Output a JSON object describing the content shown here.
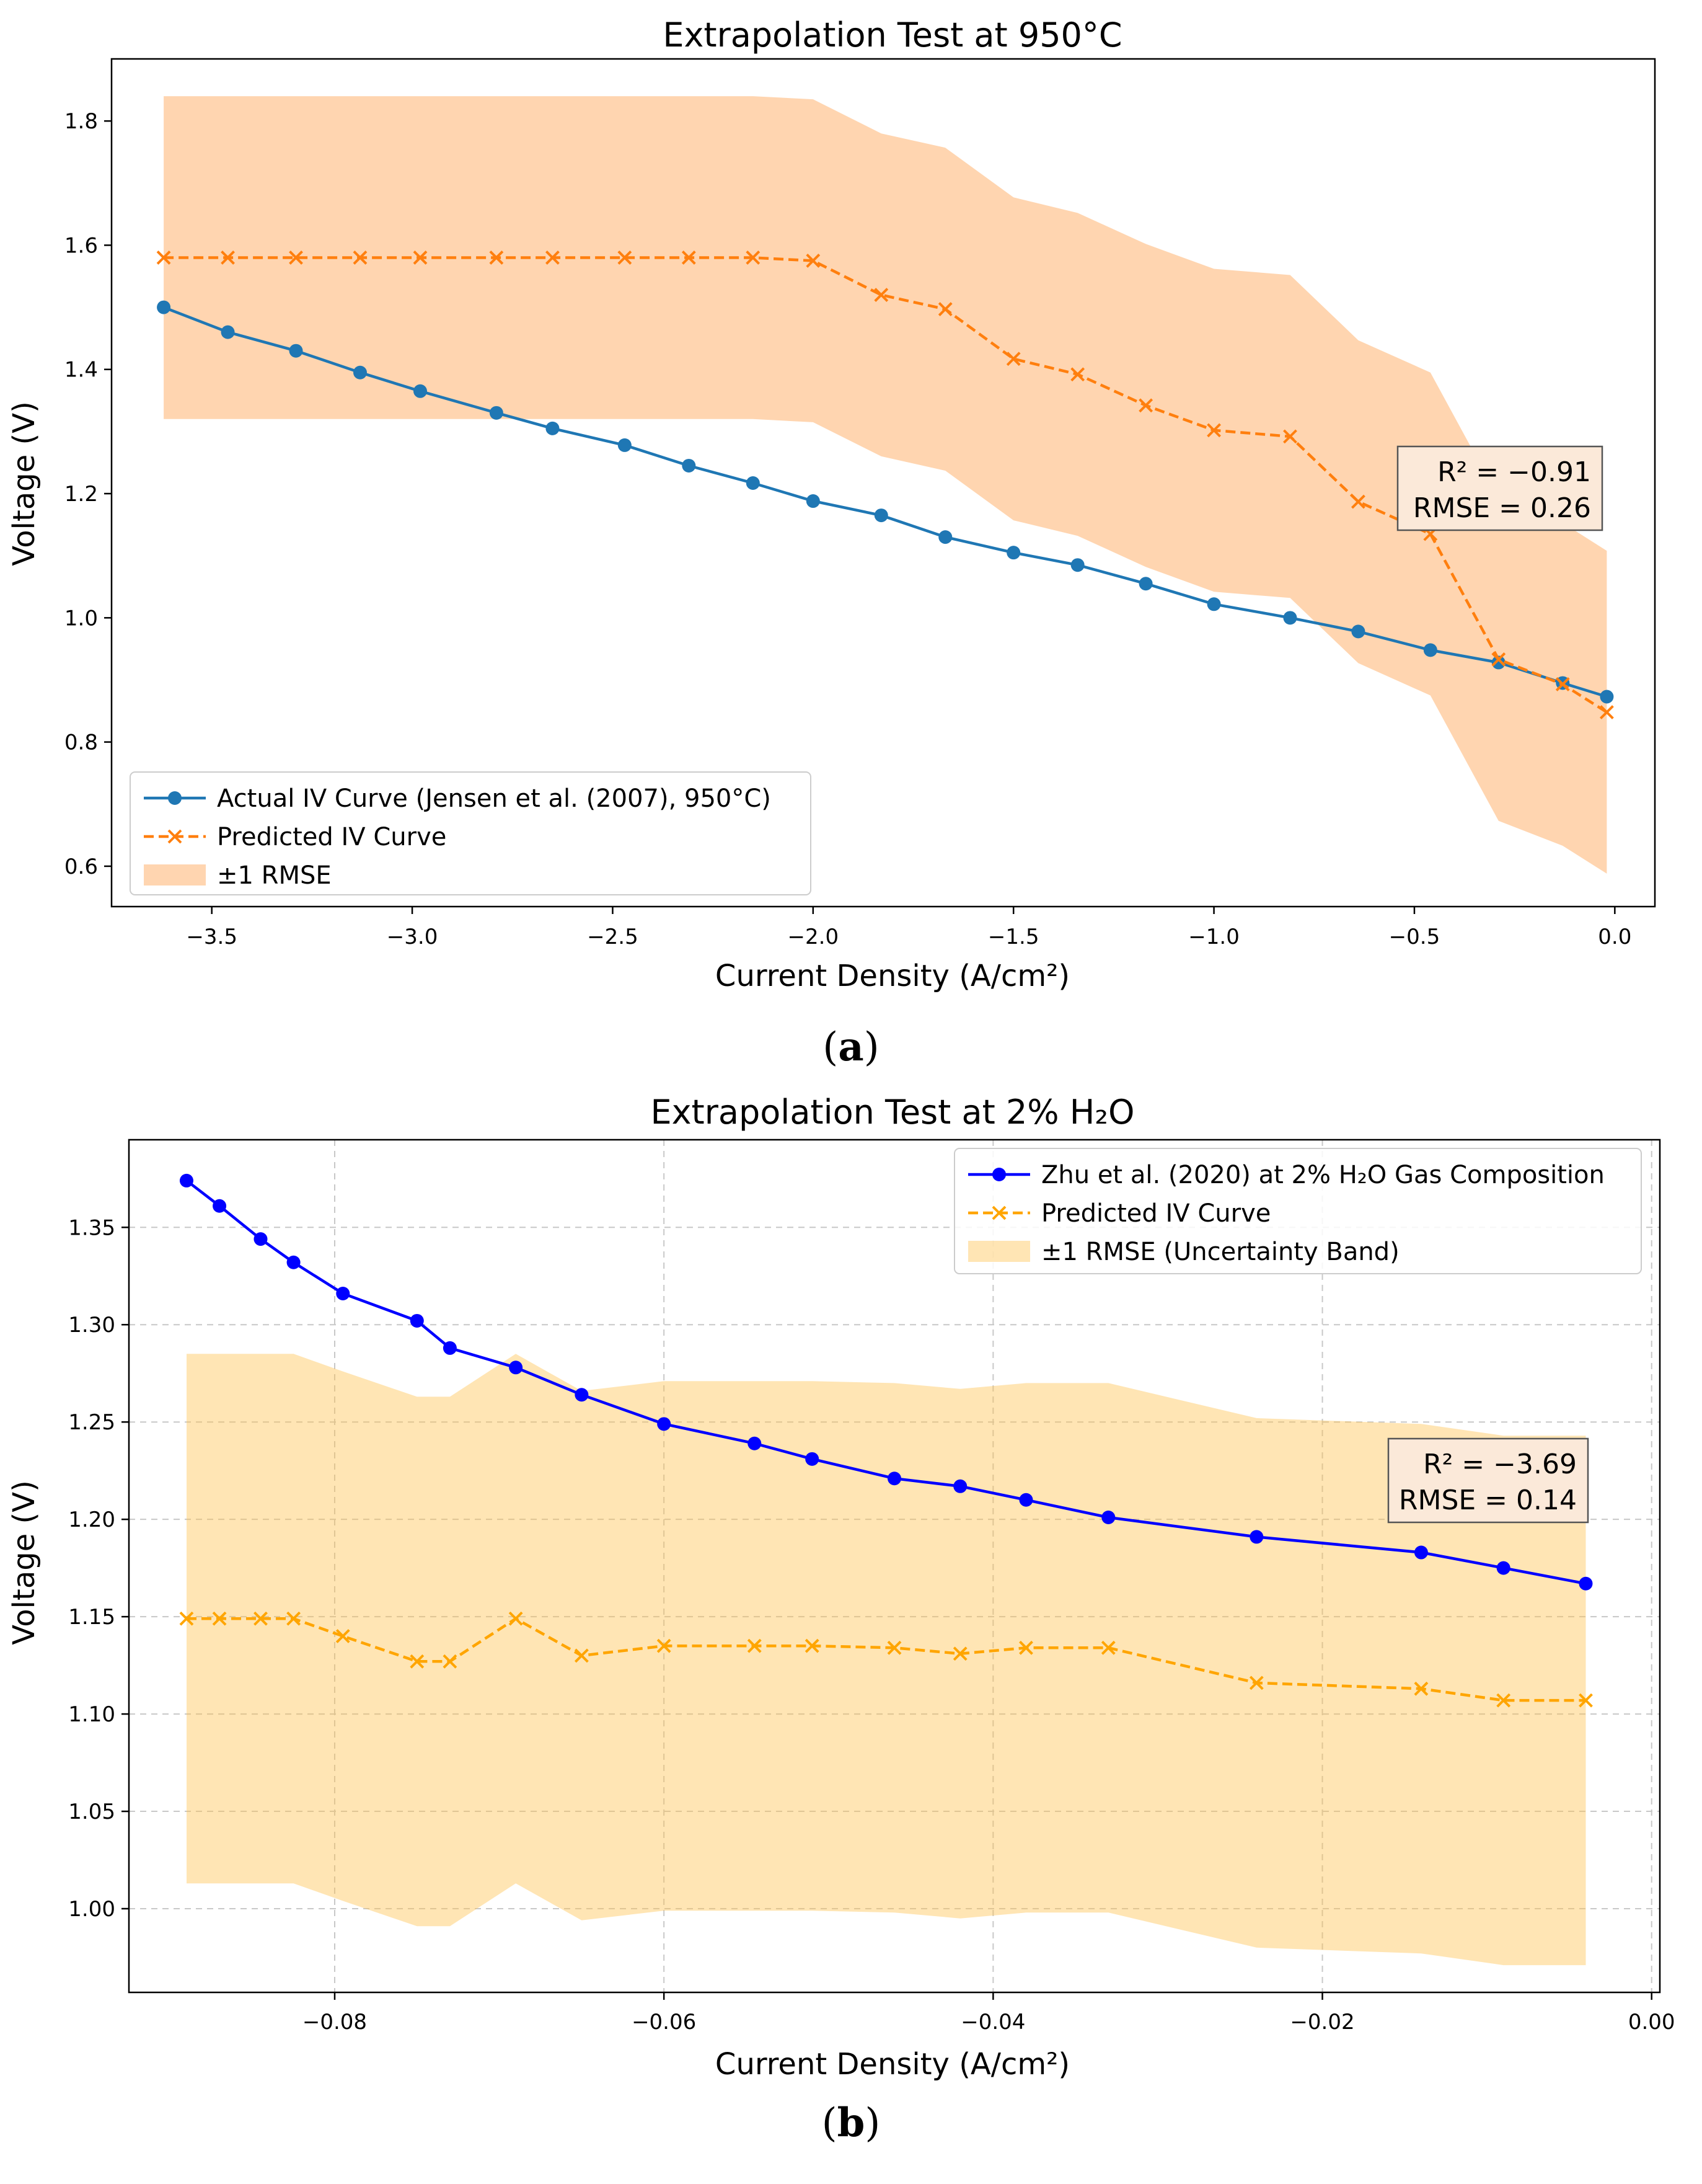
{
  "chart_data": [
    {
      "id": "a",
      "type": "line",
      "title": "Extrapolation Test at 950°C",
      "xlabel": "Current Density (A/cm²)",
      "ylabel": "Voltage (V)",
      "caption_letter": "a",
      "xlim": [
        -3.75,
        0.1
      ],
      "ylim": [
        0.535,
        1.9
      ],
      "xticks": [
        -3.5,
        -3.0,
        -2.5,
        -2.0,
        -1.5,
        -1.0,
        -0.5,
        0.0
      ],
      "xtick_labels": [
        "−3.5",
        "−3.0",
        "−2.5",
        "−2.0",
        "−1.5",
        "−1.0",
        "−0.5",
        "0.0"
      ],
      "yticks": [
        0.6,
        0.8,
        1.0,
        1.2,
        1.4,
        1.6,
        1.8
      ],
      "ytick_labels": [
        "0.6",
        "0.8",
        "1.0",
        "1.2",
        "1.4",
        "1.6",
        "1.8"
      ],
      "grid": false,
      "legend_position": "lower-left",
      "stats": {
        "r2": "R² = −0.91",
        "rmse": "RMSE = 0.26"
      },
      "colors": {
        "actual": "#1f77b4",
        "predicted": "#ff7f0e",
        "band": "#ff7f0e"
      },
      "x": [
        -3.62,
        -3.46,
        -3.29,
        -3.13,
        -2.98,
        -2.79,
        -2.65,
        -2.47,
        -2.31,
        -2.15,
        -2.0,
        -1.83,
        -1.67,
        -1.5,
        -1.34,
        -1.17,
        -1.0,
        -0.81,
        -0.64,
        -0.46,
        -0.29,
        -0.13,
        -0.02
      ],
      "series": [
        {
          "name": "Actual IV Curve (Jensen et al. (2007), 950°C)",
          "style": "solid-circle",
          "values": [
            1.5,
            1.46,
            1.43,
            1.395,
            1.365,
            1.33,
            1.305,
            1.278,
            1.245,
            1.217,
            1.188,
            1.165,
            1.13,
            1.105,
            1.085,
            1.055,
            1.022,
            1.0,
            0.978,
            0.948,
            0.928,
            0.895,
            0.873
          ]
        },
        {
          "name": "Predicted IV Curve",
          "style": "dashed-x",
          "values": [
            1.58,
            1.58,
            1.58,
            1.58,
            1.58,
            1.58,
            1.58,
            1.58,
            1.58,
            1.58,
            1.575,
            1.52,
            1.497,
            1.417,
            1.392,
            1.342,
            1.302,
            1.292,
            1.187,
            1.135,
            0.933,
            0.893,
            0.848
          ]
        }
      ],
      "band": {
        "name": "±1 RMSE",
        "x": [
          -3.62,
          -3.46,
          -3.29,
          -3.13,
          -2.98,
          -2.79,
          -2.65,
          -2.47,
          -2.31,
          -2.15,
          -2.0,
          -1.83,
          -1.67,
          -1.5,
          -1.34,
          -1.17,
          -1.0,
          -0.81,
          -0.64,
          -0.46,
          -0.29,
          -0.13,
          -0.02
        ],
        "lower": [
          1.32,
          1.32,
          1.32,
          1.32,
          1.32,
          1.32,
          1.32,
          1.32,
          1.32,
          1.32,
          1.315,
          1.26,
          1.237,
          1.157,
          1.132,
          1.082,
          1.042,
          1.032,
          0.927,
          0.875,
          0.673,
          0.633,
          0.588
        ],
        "upper": [
          1.84,
          1.84,
          1.84,
          1.84,
          1.84,
          1.84,
          1.84,
          1.84,
          1.84,
          1.84,
          1.835,
          1.78,
          1.757,
          1.677,
          1.652,
          1.602,
          1.562,
          1.552,
          1.447,
          1.395,
          1.193,
          1.153,
          1.108
        ]
      }
    },
    {
      "id": "b",
      "type": "line",
      "title": "Extrapolation Test at 2% H₂O",
      "xlabel": "Current Density (A/cm²)",
      "ylabel": "Voltage (V)",
      "caption_letter": "b",
      "xlim": [
        -0.0925,
        0.0005
      ],
      "ylim": [
        0.957,
        1.395
      ],
      "xticks": [
        -0.08,
        -0.06,
        -0.04,
        -0.02,
        0.0
      ],
      "xtick_labels": [
        "−0.08",
        "−0.06",
        "−0.04",
        "−0.02",
        "0.00"
      ],
      "yticks": [
        1.0,
        1.05,
        1.1,
        1.15,
        1.2,
        1.25,
        1.3,
        1.35
      ],
      "ytick_labels": [
        "1.00",
        "1.05",
        "1.10",
        "1.15",
        "1.20",
        "1.25",
        "1.30",
        "1.35"
      ],
      "grid": true,
      "legend_position": "upper-right",
      "stats": {
        "r2": "R² = −3.69",
        "rmse": "RMSE = 0.14"
      },
      "colors": {
        "actual": "#0000ff",
        "predicted": "#ffa500",
        "band": "#ffc04d"
      },
      "series": [
        {
          "name": "Zhu et al. (2020) at 2% H₂O Gas Composition",
          "style": "solid-circle",
          "x": [
            -0.089,
            -0.087,
            -0.0845,
            -0.0825,
            -0.0795,
            -0.075,
            -0.073,
            -0.069,
            -0.065,
            -0.06,
            -0.0545,
            -0.051,
            -0.046,
            -0.042,
            -0.038,
            -0.033,
            -0.024,
            -0.014,
            -0.009,
            -0.004
          ],
          "values": [
            1.374,
            1.361,
            1.344,
            1.332,
            1.316,
            1.302,
            1.288,
            1.278,
            1.264,
            1.249,
            1.239,
            1.231,
            1.221,
            1.217,
            1.21,
            1.201,
            1.191,
            1.183,
            1.175,
            1.167
          ]
        },
        {
          "name": "Predicted IV Curve",
          "style": "dashed-x",
          "x": [
            -0.089,
            -0.087,
            -0.0845,
            -0.0825,
            -0.0795,
            -0.075,
            -0.073,
            -0.069,
            -0.065,
            -0.06,
            -0.0545,
            -0.051,
            -0.046,
            -0.042,
            -0.038,
            -0.033,
            -0.024,
            -0.014,
            -0.009,
            -0.004
          ],
          "values": [
            1.149,
            1.149,
            1.149,
            1.149,
            1.14,
            1.127,
            1.127,
            1.149,
            1.13,
            1.135,
            1.135,
            1.135,
            1.134,
            1.131,
            1.134,
            1.134,
            1.116,
            1.113,
            1.107,
            1.107
          ]
        }
      ],
      "band": {
        "name": "±1 RMSE (Uncertainty Band)",
        "x": [
          -0.089,
          -0.087,
          -0.0845,
          -0.0825,
          -0.0795,
          -0.075,
          -0.073,
          -0.069,
          -0.065,
          -0.06,
          -0.0545,
          -0.051,
          -0.046,
          -0.042,
          -0.038,
          -0.033,
          -0.024,
          -0.014,
          -0.009,
          -0.004
        ],
        "lower": [
          1.013,
          1.013,
          1.013,
          1.013,
          1.004,
          0.991,
          0.991,
          1.013,
          0.994,
          0.999,
          0.999,
          0.999,
          0.998,
          0.995,
          0.998,
          0.998,
          0.98,
          0.977,
          0.971,
          0.971
        ],
        "upper": [
          1.285,
          1.285,
          1.285,
          1.285,
          1.276,
          1.263,
          1.263,
          1.285,
          1.266,
          1.271,
          1.271,
          1.271,
          1.27,
          1.267,
          1.27,
          1.27,
          1.252,
          1.249,
          1.243,
          1.243
        ]
      }
    }
  ]
}
